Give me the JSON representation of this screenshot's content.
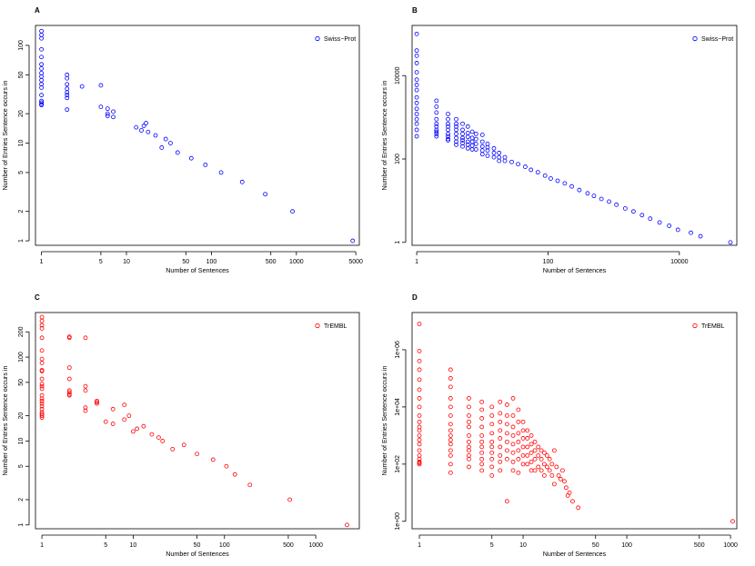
{
  "chart_data": [
    {
      "panel": "A",
      "type": "scatter",
      "xlabel": "Number of Sentences",
      "ylabel": "Number of Entries Sentence occurs in",
      "xscale": "log",
      "yscale": "log",
      "xlim": [
        0.85,
        5500
      ],
      "ylim": [
        0.9,
        160
      ],
      "xticks": [
        1,
        5,
        10,
        50,
        100,
        500,
        1000,
        5000
      ],
      "xtick_labels": [
        "1",
        "5",
        "10",
        "50",
        "100",
        "500",
        "1000",
        "5000"
      ],
      "yticks": [
        1,
        2,
        5,
        10,
        20,
        50,
        100
      ],
      "ytick_labels": [
        "1",
        "2",
        "5",
        "10",
        "20",
        "50",
        "100"
      ],
      "legend": {
        "label": "Swiss−Prot",
        "placement": "top-right"
      },
      "color": "#0000ff",
      "series": [
        {
          "name": "Swiss−Prot",
          "x": [
            1,
            1,
            1,
            1,
            1,
            1,
            1,
            1,
            1,
            1,
            1,
            1,
            1,
            1,
            1,
            1,
            1,
            2,
            2,
            2,
            2,
            2,
            2,
            2,
            2,
            3,
            5,
            5,
            6,
            6,
            6,
            7,
            7,
            13,
            15,
            16,
            17,
            18,
            22,
            26,
            29,
            33,
            40,
            58,
            85,
            130,
            230,
            430,
            900,
            4600
          ],
          "y": [
            140,
            128,
            118,
            91,
            76,
            64,
            58,
            52,
            48,
            44,
            40,
            37,
            31,
            27,
            26,
            25,
            24.5,
            50,
            46,
            40,
            36,
            33,
            31,
            29,
            22,
            38,
            39,
            23.5,
            22.5,
            20,
            19,
            21,
            18.5,
            14.5,
            13.5,
            15,
            16,
            13,
            12,
            9,
            11,
            10,
            8,
            7,
            6,
            5,
            4,
            3,
            2,
            1
          ]
        }
      ]
    },
    {
      "panel": "B",
      "type": "scatter",
      "xlabel": "Number of Sentences",
      "ylabel": "Number of Entries Sentence occurs in",
      "xscale": "log",
      "yscale": "log",
      "xlim": [
        0.85,
        75000
      ],
      "ylim": [
        0.85,
        160000
      ],
      "xticks": [
        1,
        100,
        10000
      ],
      "xtick_labels": [
        "1",
        "100",
        "10000"
      ],
      "yticks": [
        1,
        100,
        10000
      ],
      "ytick_labels": [
        "1",
        "100",
        "10000"
      ],
      "legend": {
        "label": "Swiss−Prot",
        "placement": "top-right"
      },
      "color": "#0000ff",
      "series": [
        {
          "name": "Swiss−Prot",
          "x": [
            1,
            1,
            1,
            1,
            1,
            1,
            1,
            1,
            1,
            1,
            1,
            1,
            1,
            1,
            1,
            1,
            2,
            2,
            2,
            2,
            2,
            2,
            2,
            2,
            2,
            2,
            3,
            3,
            3,
            3,
            3,
            3,
            3,
            3,
            3,
            4,
            4,
            4,
            4,
            4,
            4,
            4,
            4,
            5,
            5,
            5,
            5,
            5,
            5,
            5,
            6,
            6,
            6,
            6,
            6,
            6,
            7,
            7,
            7,
            7,
            7,
            8,
            8,
            8,
            8,
            10,
            10,
            10,
            10,
            10,
            12,
            12,
            12,
            12,
            15,
            15,
            15,
            18,
            18,
            18,
            22,
            22,
            28,
            35,
            45,
            55,
            70,
            90,
            110,
            140,
            180,
            230,
            300,
            400,
            500,
            650,
            850,
            1100,
            1500,
            2000,
            2700,
            3600,
            5000,
            7000,
            9500,
            15000,
            21000,
            60000
          ],
          "y": [
            100000,
            40000,
            30000,
            20000,
            12000,
            8000,
            6000,
            4500,
            3000,
            2200,
            1600,
            1200,
            900,
            700,
            500,
            350,
            2500,
            1800,
            1300,
            900,
            700,
            600,
            500,
            450,
            400,
            350,
            1200,
            900,
            700,
            600,
            500,
            400,
            350,
            300,
            280,
            900,
            700,
            600,
            500,
            400,
            320,
            260,
            220,
            700,
            500,
            400,
            320,
            280,
            240,
            200,
            600,
            420,
            340,
            260,
            220,
            180,
            450,
            320,
            260,
            210,
            170,
            400,
            300,
            230,
            170,
            380,
            260,
            200,
            160,
            130,
            230,
            190,
            160,
            120,
            180,
            140,
            110,
            140,
            110,
            90,
            110,
            90,
            85,
            75,
            65,
            55,
            48,
            40,
            34,
            30,
            26,
            22,
            18,
            15,
            13,
            11,
            9.5,
            8,
            6.5,
            5.5,
            4.5,
            3.7,
            3,
            2.5,
            2,
            1.7,
            1.4,
            1
          ]
        }
      ]
    },
    {
      "panel": "C",
      "type": "scatter",
      "xlabel": "Number of Sentences",
      "ylabel": "Number of Entries Sentence occurs in",
      "xscale": "log",
      "yscale": "log",
      "xlim": [
        0.85,
        3000
      ],
      "ylim": [
        0.9,
        340
      ],
      "xticks": [
        1,
        5,
        10,
        50,
        100,
        500,
        1000
      ],
      "xtick_labels": [
        "1",
        "5",
        "10",
        "50",
        "100",
        "500",
        "1000"
      ],
      "yticks": [
        1,
        2,
        5,
        10,
        20,
        50,
        100,
        200
      ],
      "ytick_labels": [
        "1",
        "2",
        "5",
        "10",
        "20",
        "50",
        "100",
        "200"
      ],
      "legend": {
        "label": "TrEMBL",
        "placement": "top-right"
      },
      "color": "#ff0000",
      "series": [
        {
          "name": "TrEMBL",
          "x": [
            1,
            1,
            1,
            1,
            1,
            1,
            1,
            1,
            1,
            1,
            1,
            1,
            1,
            1,
            1,
            1,
            1,
            1,
            1,
            1,
            1,
            1,
            1,
            1,
            2,
            2,
            2,
            2,
            2,
            2,
            2,
            2,
            3,
            3,
            3,
            3,
            3,
            4,
            4,
            4,
            5,
            6,
            6,
            8,
            8,
            9,
            10,
            11,
            13,
            16,
            19,
            21,
            27,
            36,
            50,
            75,
            105,
            130,
            190,
            520,
            2200
          ],
          "y": [
            300,
            270,
            240,
            220,
            170,
            120,
            95,
            85,
            70,
            68,
            55,
            48,
            45,
            42,
            35,
            32,
            30,
            28,
            26,
            24,
            22,
            21,
            20,
            19,
            175,
            170,
            75,
            55,
            40,
            38,
            36,
            35,
            170,
            45,
            40,
            25,
            23,
            30,
            29,
            28,
            17,
            24,
            16,
            27,
            18,
            20,
            13,
            14,
            15,
            12,
            11,
            10,
            8,
            9,
            7,
            6,
            5,
            4,
            3,
            2,
            1
          ]
        }
      ]
    },
    {
      "panel": "D",
      "type": "scatter",
      "xlabel": "Number of Sentences",
      "ylabel": "Number of Entries Sentence occurs in",
      "xscale": "log",
      "yscale": "log",
      "xlim": [
        0.85,
        1150
      ],
      "ylim": [
        0.55,
        20000000
      ],
      "xticks": [
        1,
        5,
        10,
        50,
        100,
        500,
        1000
      ],
      "xtick_labels": [
        "1",
        "5",
        "10",
        "50",
        "100",
        "500",
        "1000"
      ],
      "yticks": [
        1,
        100,
        10000,
        1000000
      ],
      "ytick_labels": [
        "1e+00",
        "1e+02",
        "1e+04",
        "1e+06"
      ],
      "legend": {
        "label": "TrEMBL",
        "placement": "top-right"
      },
      "color": "#ff0000",
      "series": [
        {
          "name": "TrEMBL",
          "x": [
            1,
            1,
            1,
            1,
            1,
            1,
            1,
            1,
            1,
            1,
            1,
            1,
            1,
            1,
            1,
            1,
            1,
            1,
            1,
            1,
            1,
            2,
            2,
            2,
            2,
            2,
            2,
            2,
            2,
            2,
            2,
            2,
            2,
            2,
            2,
            2,
            3,
            3,
            3,
            3,
            3,
            3,
            3,
            3,
            3,
            3,
            3,
            3,
            4,
            4,
            4,
            4,
            4,
            4,
            4,
            4,
            4,
            4,
            4,
            5,
            5,
            5,
            5,
            5,
            5,
            5,
            5,
            5,
            5,
            6,
            6,
            6,
            6,
            6,
            6,
            6,
            6,
            6,
            7,
            7,
            7,
            7,
            7,
            7,
            7,
            7,
            8,
            8,
            8,
            8,
            8,
            8,
            8,
            8,
            9,
            9,
            9,
            9,
            9,
            9,
            9,
            10,
            10,
            10,
            10,
            10,
            10,
            11,
            11,
            11,
            11,
            11,
            12,
            12,
            12,
            12,
            12,
            13,
            13,
            13,
            13,
            14,
            14,
            14,
            15,
            15,
            15,
            16,
            16,
            16,
            17,
            17,
            18,
            18,
            19,
            19,
            20,
            20,
            21,
            22,
            23,
            24,
            25,
            26,
            27,
            28,
            30,
            34,
            1050
          ],
          "y": [
            8000000,
            900000,
            400000,
            200000,
            90000,
            40000,
            20000,
            10000,
            5000,
            3000,
            2000,
            1500,
            1000,
            700,
            500,
            300,
            200,
            150,
            120,
            110,
            100,
            200000,
            100000,
            50000,
            20000,
            10000,
            5000,
            2500,
            1500,
            1000,
            700,
            500,
            300,
            200,
            100,
            50,
            20000,
            10000,
            5000,
            3000,
            2000,
            1000,
            600,
            400,
            300,
            200,
            150,
            80,
            15000,
            8000,
            4000,
            2000,
            1000,
            600,
            400,
            250,
            150,
            100,
            60,
            10000,
            5000,
            2500,
            1200,
            600,
            400,
            250,
            150,
            80,
            40,
            15000,
            6000,
            3000,
            1500,
            800,
            400,
            200,
            120,
            60,
            12000,
            5000,
            2500,
            1200,
            600,
            300,
            150,
            5,
            20000,
            5000,
            2000,
            1000,
            500,
            250,
            120,
            60,
            8000,
            3000,
            1200,
            600,
            300,
            150,
            50,
            3000,
            1500,
            800,
            400,
            200,
            100,
            1500,
            800,
            400,
            200,
            100,
            1000,
            500,
            250,
            120,
            60,
            600,
            300,
            150,
            60,
            400,
            200,
            80,
            300,
            150,
            60,
            250,
            100,
            40,
            200,
            80,
            150,
            60,
            100,
            40,
            300,
            20,
            80,
            40,
            30,
            60,
            25,
            15,
            8,
            10,
            5,
            3,
            1
          ]
        }
      ]
    }
  ]
}
